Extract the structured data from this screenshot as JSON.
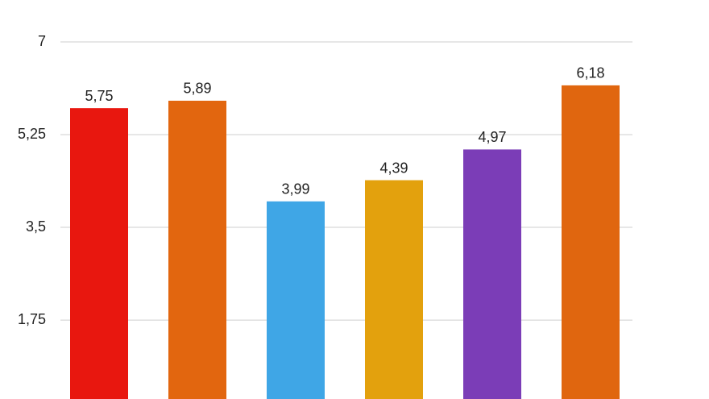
{
  "chart_data": {
    "type": "bar",
    "categories": [
      null,
      null,
      null,
      null,
      null,
      null
    ],
    "values": [
      5.75,
      5.89,
      3.99,
      4.39,
      4.97,
      6.18
    ],
    "value_labels": [
      "5,75",
      "5,89",
      "3,99",
      "4,39",
      "4,97",
      "6,18"
    ],
    "colors": [
      "#e8170f",
      "#e2660f",
      "#3fa6e6",
      "#e3a10d",
      "#7b3db7",
      "#e0660f"
    ],
    "ylim": [
      0.26,
      7
    ],
    "yticks": [
      {
        "value": 1.75,
        "label": "1,75"
      },
      {
        "value": 3.5,
        "label": "3,5"
      },
      {
        "value": 5.25,
        "label": "5,25"
      },
      7
    ],
    "grid": true
  }
}
